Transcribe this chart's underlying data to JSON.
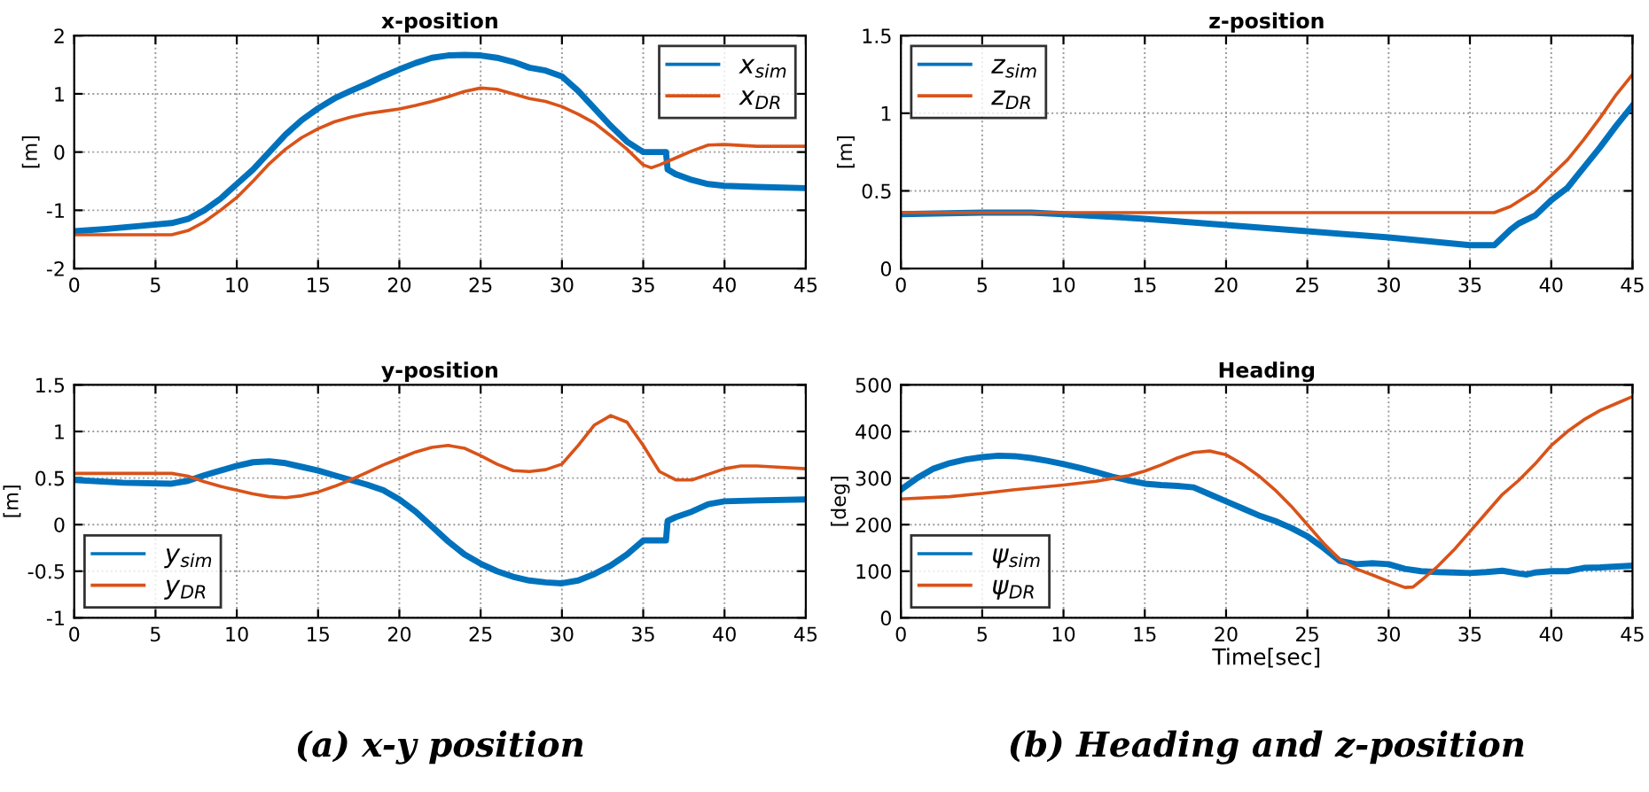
{
  "chart_data": [
    {
      "type": "line",
      "title": "x-position",
      "ylabel": "[m]",
      "xlim": [
        0,
        45
      ],
      "xticks": [
        0,
        5,
        10,
        15,
        20,
        25,
        30,
        35,
        40,
        45
      ],
      "ylim": [
        -2,
        2
      ],
      "yticks": [
        -2,
        -1,
        0,
        1,
        2
      ],
      "grid": true,
      "legend": "top right",
      "line_style": "solid",
      "series": [
        {
          "name": "x$_{sim}$",
          "color": "#0072bd",
          "x": [
            0,
            2,
            4,
            6,
            7,
            8,
            9,
            10,
            11,
            12,
            13,
            14,
            15,
            16,
            17,
            18,
            19,
            20,
            21,
            22,
            23,
            24,
            25,
            26,
            27,
            28,
            29,
            30,
            31,
            32,
            33,
            34,
            35,
            36.4,
            36.5,
            37,
            38,
            39,
            40,
            42,
            45
          ],
          "values": [
            -1.36,
            -1.32,
            -1.27,
            -1.22,
            -1.15,
            -1.0,
            -0.8,
            -0.55,
            -0.3,
            0.0,
            0.3,
            0.55,
            0.75,
            0.92,
            1.05,
            1.17,
            1.3,
            1.42,
            1.53,
            1.62,
            1.66,
            1.67,
            1.66,
            1.62,
            1.55,
            1.45,
            1.4,
            1.3,
            1.05,
            0.75,
            0.45,
            0.18,
            0.0,
            0.0,
            -0.3,
            -0.38,
            -0.48,
            -0.55,
            -0.58,
            -0.6,
            -0.62
          ]
        },
        {
          "name": "x$_{DR}$",
          "color": "#d95319",
          "x": [
            0,
            6,
            7,
            8,
            9,
            10,
            11,
            12,
            13,
            14,
            15,
            16,
            17,
            18,
            19,
            20,
            21,
            22,
            23,
            24,
            25,
            26,
            27,
            28,
            29,
            30,
            31,
            32,
            33,
            34,
            35,
            35.5,
            36,
            37,
            38,
            39,
            40,
            42,
            45
          ],
          "values": [
            -1.42,
            -1.42,
            -1.35,
            -1.2,
            -1.0,
            -0.78,
            -0.5,
            -0.2,
            0.05,
            0.25,
            0.4,
            0.52,
            0.6,
            0.66,
            0.7,
            0.74,
            0.8,
            0.87,
            0.95,
            1.04,
            1.1,
            1.08,
            1.0,
            0.92,
            0.87,
            0.78,
            0.65,
            0.5,
            0.28,
            0.05,
            -0.22,
            -0.27,
            -0.22,
            -0.1,
            0.02,
            0.12,
            0.13,
            0.1,
            0.1
          ]
        }
      ]
    },
    {
      "type": "line",
      "title": "z-position",
      "ylabel": "[m]",
      "xlim": [
        0,
        45
      ],
      "xticks": [
        0,
        5,
        10,
        15,
        20,
        25,
        30,
        35,
        40,
        45
      ],
      "ylim": [
        0,
        1.5
      ],
      "yticks": [
        0,
        0.5,
        1,
        1.5
      ],
      "grid": true,
      "legend": "top left",
      "line_style": "solid",
      "series": [
        {
          "name": "z$_{sim}$",
          "color": "#0072bd",
          "x": [
            0,
            5,
            8,
            10,
            15,
            20,
            25,
            30,
            35,
            36.5,
            37.5,
            38,
            39,
            40,
            41,
            42,
            43,
            44,
            45
          ],
          "values": [
            0.35,
            0.36,
            0.36,
            0.35,
            0.32,
            0.28,
            0.24,
            0.2,
            0.15,
            0.15,
            0.25,
            0.29,
            0.34,
            0.44,
            0.52,
            0.65,
            0.78,
            0.92,
            1.05
          ]
        },
        {
          "name": "z$_{DR}$",
          "color": "#d95319",
          "x": [
            0,
            36.5,
            37.5,
            39,
            40,
            41,
            42,
            43,
            44,
            45
          ],
          "values": [
            0.36,
            0.36,
            0.4,
            0.5,
            0.6,
            0.7,
            0.83,
            0.97,
            1.12,
            1.25
          ]
        }
      ]
    },
    {
      "type": "line",
      "title": "y-position",
      "ylabel": "[m]",
      "xlim": [
        0,
        45
      ],
      "xticks": [
        0,
        5,
        10,
        15,
        20,
        25,
        30,
        35,
        40,
        45
      ],
      "ylim": [
        -1,
        1.5
      ],
      "yticks": [
        -1,
        -0.5,
        0,
        0.5,
        1,
        1.5
      ],
      "grid": true,
      "legend": "bottom left",
      "line_style": "solid",
      "annotations": [
        "(a) x-y position"
      ],
      "series": [
        {
          "name": "y$_{sim}$",
          "color": "#0072bd",
          "x": [
            0,
            3,
            6,
            7,
            8,
            9,
            10,
            11,
            12,
            13,
            14,
            15,
            16,
            17,
            18,
            19,
            20,
            21,
            22,
            23,
            24,
            25,
            26,
            27,
            28,
            29,
            30,
            31,
            32,
            33,
            34,
            35,
            36.4,
            36.5,
            37,
            38,
            39,
            40,
            42,
            45
          ],
          "values": [
            0.48,
            0.45,
            0.44,
            0.47,
            0.53,
            0.58,
            0.63,
            0.67,
            0.68,
            0.66,
            0.62,
            0.58,
            0.53,
            0.48,
            0.43,
            0.37,
            0.27,
            0.14,
            -0.02,
            -0.18,
            -0.32,
            -0.42,
            -0.5,
            -0.56,
            -0.6,
            -0.62,
            -0.63,
            -0.6,
            -0.53,
            -0.44,
            -0.32,
            -0.17,
            -0.17,
            0.04,
            0.08,
            0.14,
            0.22,
            0.25,
            0.26,
            0.27
          ]
        },
        {
          "name": "y$_{DR}$",
          "color": "#d95319",
          "x": [
            0,
            6,
            7,
            8,
            9,
            10,
            11,
            12,
            13,
            14,
            15,
            16,
            17,
            18,
            19,
            20,
            21,
            22,
            23,
            24,
            25,
            26,
            27,
            28,
            29,
            30,
            31,
            32,
            33,
            34,
            35,
            36,
            37,
            38,
            39,
            40,
            41,
            42,
            43,
            45
          ],
          "values": [
            0.55,
            0.55,
            0.52,
            0.46,
            0.41,
            0.37,
            0.33,
            0.3,
            0.29,
            0.31,
            0.35,
            0.41,
            0.48,
            0.56,
            0.64,
            0.71,
            0.78,
            0.83,
            0.85,
            0.82,
            0.74,
            0.65,
            0.58,
            0.57,
            0.59,
            0.65,
            0.85,
            1.07,
            1.17,
            1.1,
            0.85,
            0.57,
            0.48,
            0.48,
            0.54,
            0.6,
            0.63,
            0.63,
            0.62,
            0.6
          ]
        }
      ]
    },
    {
      "type": "line",
      "title": "Heading",
      "xlabel": "Time[sec]",
      "ylabel": "[deg]",
      "xlim": [
        0,
        45
      ],
      "xticks": [
        0,
        5,
        10,
        15,
        20,
        25,
        30,
        35,
        40,
        45
      ],
      "ylim": [
        0,
        500
      ],
      "yticks": [
        0,
        100,
        200,
        300,
        400,
        500
      ],
      "grid": true,
      "legend": "bottom left",
      "line_style": "solid",
      "annotations": [
        "(b) Heading and z-position"
      ],
      "series": [
        {
          "name": "ψ$_{sim}$",
          "color": "#0072bd",
          "x": [
            0,
            1,
            2,
            3,
            4,
            5,
            6,
            7,
            8,
            9,
            10,
            11,
            12,
            13,
            14,
            15,
            16,
            17,
            18,
            19,
            20,
            21,
            22,
            23,
            24,
            25,
            26,
            27,
            28,
            29,
            30,
            31,
            32,
            33,
            34,
            35,
            36,
            37,
            38,
            38.5,
            39,
            40,
            41,
            42,
            43,
            45
          ],
          "values": [
            275,
            300,
            320,
            332,
            340,
            345,
            348,
            347,
            343,
            337,
            330,
            322,
            313,
            303,
            295,
            288,
            285,
            283,
            280,
            265,
            250,
            235,
            220,
            208,
            193,
            175,
            150,
            122,
            115,
            117,
            115,
            105,
            100,
            98,
            97,
            96,
            98,
            101,
            95,
            93,
            97,
            100,
            100,
            107,
            108,
            112
          ]
        },
        {
          "name": "ψ$_{DR}$",
          "color": "#d95319",
          "x": [
            0,
            3,
            5,
            7,
            10,
            12,
            14,
            15,
            16,
            17,
            18,
            19,
            20,
            21,
            22,
            23,
            24,
            25,
            26,
            27,
            28,
            29,
            30,
            31,
            31.5,
            32,
            33,
            34,
            35,
            36,
            37,
            38,
            39,
            40,
            41,
            42,
            43,
            44,
            45
          ],
          "values": [
            255,
            260,
            267,
            275,
            285,
            293,
            305,
            315,
            328,
            343,
            355,
            358,
            350,
            330,
            305,
            275,
            240,
            200,
            160,
            125,
            105,
            92,
            78,
            65,
            66,
            80,
            110,
            145,
            185,
            225,
            265,
            295,
            330,
            370,
            400,
            425,
            445,
            460,
            475
          ]
        }
      ]
    }
  ]
}
